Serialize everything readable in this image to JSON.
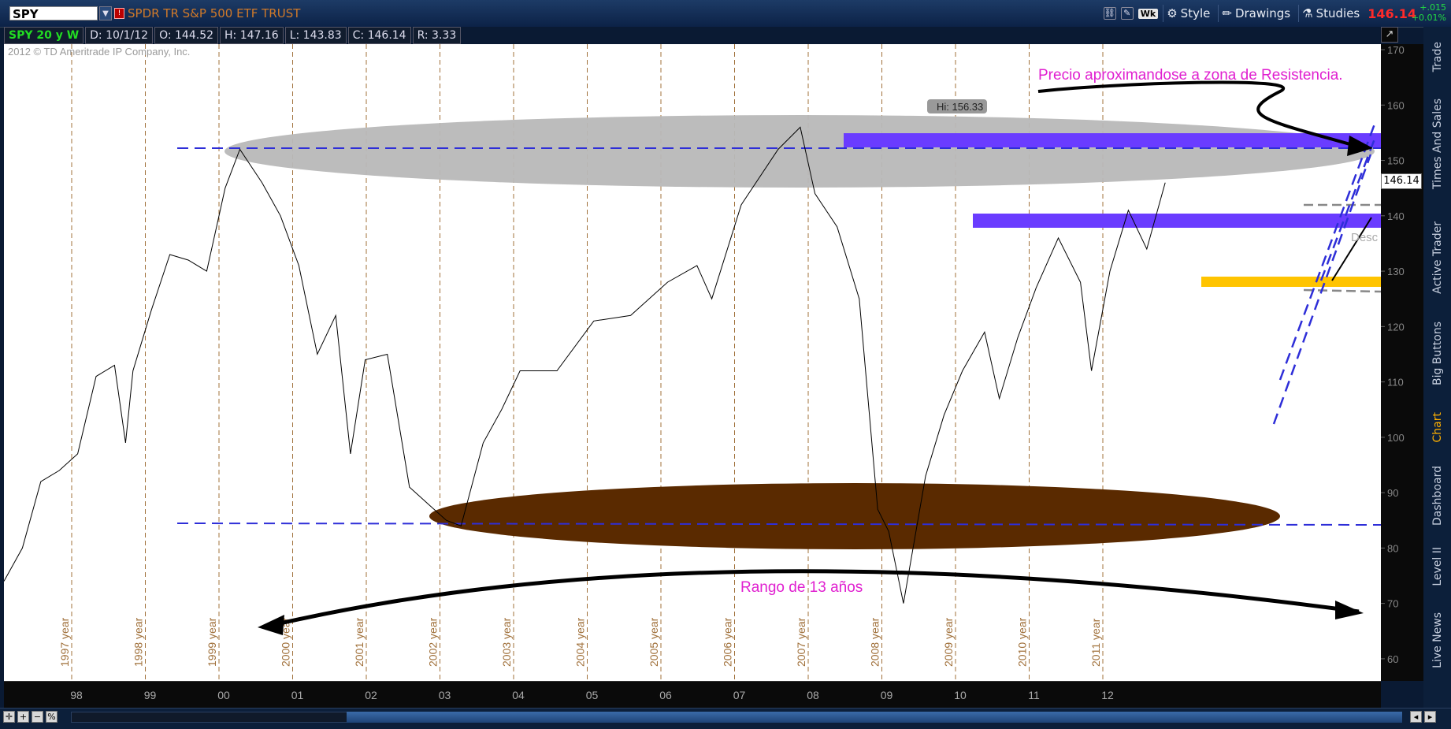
{
  "header": {
    "symbol": "SPY",
    "description": "SPDR TR S&P 500 ETF TRUST",
    "interval_label": "Wk",
    "style_label": "Style",
    "drawings_label": "Drawings",
    "studies_label": "Studies",
    "last_price": "146.14",
    "change": "+.015",
    "change_pct": "+0.01%"
  },
  "infobar": {
    "chart_label": "SPY 20 y W",
    "date": "D: 10/1/12",
    "open": "O: 144.52",
    "high": "H: 147.16",
    "low": "L: 143.83",
    "close": "C: 146.14",
    "range": "R: 3.33"
  },
  "copyright": "2012 © TD Ameritrade IP Company, Inc.",
  "price_marker": "146.14",
  "side_tabs": [
    "Trade",
    "Times And Sales",
    "Active Trader",
    "Big Buttons",
    "Chart",
    "Dashboard",
    "Level II",
    "Live News"
  ],
  "colors": {
    "resistance_zone": "#b8b8b8",
    "support_zone": "#5a2a00",
    "blue_band": "#6a3cff",
    "yellow_band": "#ffc400",
    "annotation_text": "#e020d0",
    "year_line": "#a0703a",
    "dashed_blue": "#2e2ed8"
  },
  "chart_data": {
    "type": "line",
    "title": "",
    "xlabel": "",
    "ylabel": "",
    "ylim": [
      56,
      171
    ],
    "y_ticks": [
      60,
      70,
      80,
      90,
      100,
      110,
      120,
      130,
      140,
      150,
      160,
      170
    ],
    "x_ticks": [
      "98",
      "99",
      "00",
      "01",
      "02",
      "03",
      "04",
      "05",
      "06",
      "07",
      "08",
      "09",
      "10",
      "11",
      "12"
    ],
    "year_markers": [
      "1997 year",
      "1998 year",
      "1999 year",
      "2000 year",
      "2001 year",
      "2002 year",
      "2003 year",
      "2004 year",
      "2005 year",
      "2006 year",
      "2007 year",
      "2008 year",
      "2009 year",
      "2010 year",
      "2011 year"
    ],
    "series": [
      {
        "x": [
          1997.0,
          1997.25,
          1997.5,
          1997.75,
          1998.0,
          1998.25,
          1998.5,
          1998.65,
          1998.75,
          1999.0,
          1999.25,
          1999.5,
          1999.75,
          2000.0,
          2000.2,
          2000.5,
          2000.75,
          2001.0,
          2001.25,
          2001.5,
          2001.7,
          2001.9,
          2002.2,
          2002.5,
          2002.75,
          2003.0,
          2003.2,
          2003.5,
          2003.75,
          2004.0,
          2004.5,
          2005.0,
          2005.5,
          2006.0,
          2006.4,
          2006.6,
          2007.0,
          2007.5,
          2007.8,
          2008.0,
          2008.3,
          2008.6,
          2008.85,
          2009.0,
          2009.2,
          2009.5,
          2009.75,
          2010.0,
          2010.3,
          2010.5,
          2010.75,
          2011.0,
          2011.3,
          2011.6,
          2011.75,
          2012.0,
          2012.25,
          2012.5,
          2012.75
        ],
        "values": [
          74,
          80,
          92,
          94,
          97,
          111,
          113,
          99,
          112,
          123,
          133,
          132,
          130,
          145,
          152,
          146,
          140,
          131,
          115,
          122,
          97,
          114,
          115,
          91,
          88,
          85,
          84,
          99,
          105,
          112,
          112,
          121,
          122,
          128,
          131,
          125,
          142,
          152,
          156,
          144,
          138,
          125,
          87,
          83,
          70,
          93,
          104,
          112,
          119,
          107,
          118,
          127,
          136,
          128,
          112,
          130,
          141,
          134,
          146
        ]
      }
    ],
    "annotations": [
      {
        "label": "Hi: 156.33",
        "value": 156.33
      },
      {
        "label": "Precio aproximandose a zona de Resistencia."
      },
      {
        "label": "Rango de 13 años"
      },
      {
        "label": "Desc"
      }
    ],
    "zones": [
      {
        "name": "resistance",
        "from": 145,
        "to": 158
      },
      {
        "name": "support",
        "from": 78,
        "to": 92
      }
    ],
    "levels": [
      152.5,
      140,
      128.5,
      86
    ]
  }
}
